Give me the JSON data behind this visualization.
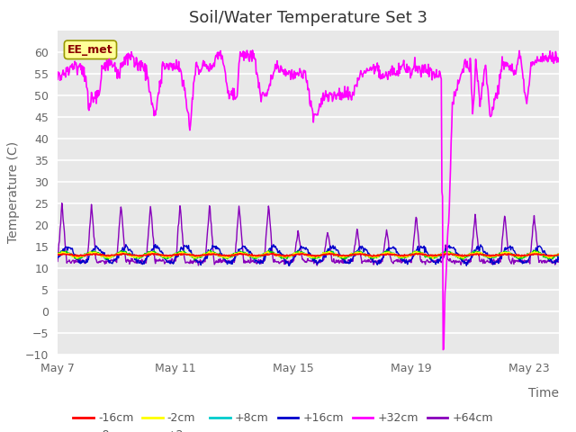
{
  "title": "Soil/Water Temperature Set 3",
  "xlabel": "Time",
  "ylabel": "Temperature (C)",
  "xlim_days": [
    0,
    17
  ],
  "ylim": [
    -10,
    65
  ],
  "yticks": [
    -10,
    -5,
    0,
    5,
    10,
    15,
    20,
    25,
    30,
    35,
    40,
    45,
    50,
    55,
    60
  ],
  "xtick_labels": [
    "May 7",
    "May 11",
    "May 15",
    "May 19",
    "May 23"
  ],
  "xtick_positions": [
    0,
    4,
    8,
    12,
    16
  ],
  "series_colors": {
    "-16cm": "#ff0000",
    "-8cm": "#ff8800",
    "-2cm": "#ffff00",
    "+2cm": "#00cc00",
    "+8cm": "#00cccc",
    "+16cm": "#0000cc",
    "+32cm": "#ff00ff",
    "+64cm": "#8800bb"
  },
  "annotation_text": "EE_met",
  "bg_color": "#e8e8e8",
  "fig_color": "#ffffff",
  "grid_color": "#ffffff",
  "title_fontsize": 13,
  "label_fontsize": 10,
  "tick_fontsize": 9,
  "legend_fontsize": 9
}
